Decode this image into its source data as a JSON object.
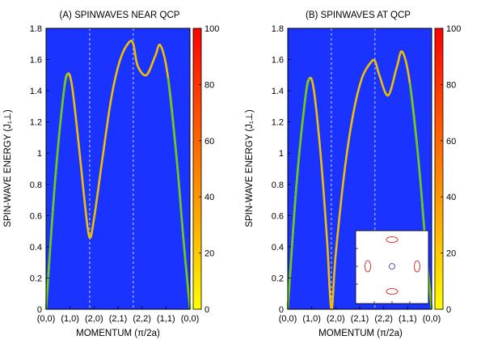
{
  "chart_data": [
    {
      "type": "line",
      "title": "(A) SPINWAVES NEAR QCP",
      "xlabel": "MOMENTUM (π/2a)",
      "ylabel": "SPIN-WAVE ENERGY (J₁⊥)",
      "x_tick_labels": [
        "(0,0)",
        "(1,0)",
        "(2,0)",
        "(2,1)",
        "(2,2)",
        "(1,1)",
        "(0,0)"
      ],
      "y_ticks": [
        "0",
        "0.2",
        "0.4",
        "0.6",
        "0.8",
        "1",
        "1.2",
        "1.4",
        "1.6",
        "1.8"
      ],
      "ylim": [
        0,
        1.8
      ],
      "xlim": [
        0,
        6.6
      ],
      "vlines_x": [
        2.0,
        4.0
      ],
      "background_color": "#1a33ff",
      "curve_color": "#f0c000",
      "colorbar": {
        "range": [
          0,
          100
        ],
        "ticks": [
          "0",
          "20",
          "40",
          "60",
          "80",
          "100"
        ]
      },
      "x": [
        0,
        0.4,
        0.8,
        1.0,
        1.2,
        1.5,
        1.8,
        2.0,
        2.2,
        2.6,
        3.0,
        3.4,
        3.8,
        4.0,
        4.2,
        4.6,
        5.0,
        5.25,
        5.6,
        6.0,
        6.3,
        6.6
      ],
      "y": [
        0.0,
        0.8,
        1.38,
        1.51,
        1.42,
        1.05,
        0.65,
        0.46,
        0.58,
        0.98,
        1.36,
        1.6,
        1.71,
        1.7,
        1.56,
        1.5,
        1.62,
        1.69,
        1.48,
        0.95,
        0.45,
        0.0
      ]
    },
    {
      "type": "line",
      "title": "(B) SPINWAVES AT QCP",
      "xlabel": "MOMENTUM (π/2a)",
      "ylabel": "SPIN-WAVE ENERGY (J₁⊥)",
      "x_tick_labels": [
        "(0,0)",
        "(1,0)",
        "(2,0)",
        "(2,1)",
        "(2,2)",
        "(1,1)",
        "(0,0)"
      ],
      "y_ticks": [
        "0",
        "0.2",
        "0.4",
        "0.6",
        "0.8",
        "1",
        "1.2",
        "1.4",
        "1.6",
        "1.8"
      ],
      "ylim": [
        0,
        1.8
      ],
      "xlim": [
        0,
        6.6
      ],
      "vlines_x": [
        2.0,
        4.0
      ],
      "background_color": "#1a33ff",
      "curve_color": "#f0c000",
      "colorbar": {
        "range": [
          0,
          100
        ],
        "ticks": [
          "0",
          "20",
          "40",
          "60",
          "80",
          "100"
        ]
      },
      "x": [
        0,
        0.4,
        0.8,
        1.0,
        1.2,
        1.5,
        1.8,
        2.0,
        2.2,
        2.6,
        3.0,
        3.4,
        3.8,
        4.0,
        4.2,
        4.6,
        5.0,
        5.25,
        5.6,
        6.0,
        6.3,
        6.6
      ],
      "y": [
        0.0,
        0.8,
        1.35,
        1.48,
        1.4,
        1.0,
        0.45,
        0.0,
        0.35,
        0.88,
        1.25,
        1.48,
        1.58,
        1.59,
        1.5,
        1.37,
        1.55,
        1.65,
        1.45,
        0.95,
        0.45,
        0.0
      ],
      "inset": {
        "type": "contour",
        "ellipse_color": "#e00000",
        "circle_color": "#2222cc"
      }
    }
  ]
}
